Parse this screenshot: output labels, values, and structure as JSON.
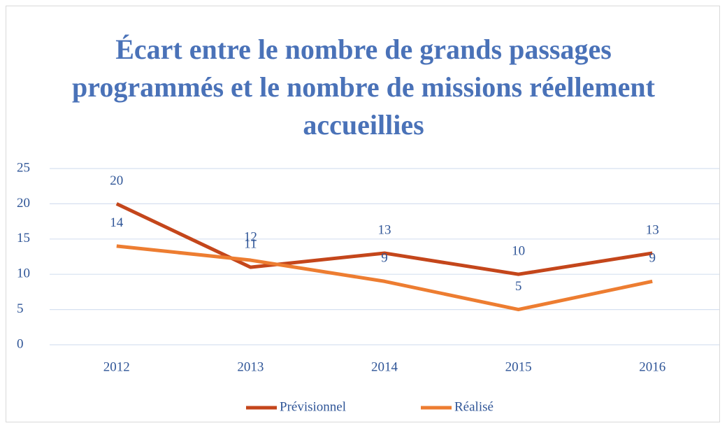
{
  "chart_data": {
    "type": "line",
    "title": "Écart entre le nombre de grands passages programmés et le nombre de missions réellement accueillies",
    "categories": [
      "2012",
      "2013",
      "2014",
      "2015",
      "2016"
    ],
    "series": [
      {
        "name": "Prévisionnel",
        "color": "#c4461b",
        "values": [
          20,
          11,
          13,
          10,
          13
        ]
      },
      {
        "name": "Réalisé",
        "color": "#ed7d31",
        "values": [
          14,
          12,
          9,
          5,
          9
        ]
      }
    ],
    "ylim": [
      0,
      25
    ],
    "yticks": [
      0,
      5,
      10,
      15,
      20,
      25
    ],
    "grid": true,
    "legend": "bottom"
  }
}
